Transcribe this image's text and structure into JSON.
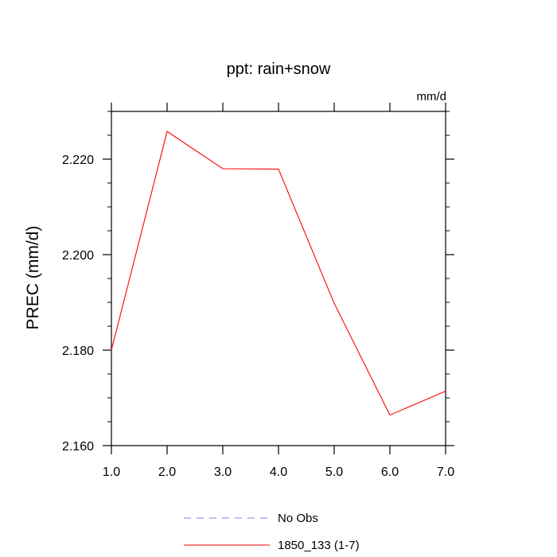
{
  "chart_data": {
    "type": "line",
    "title": "ppt: rain+snow",
    "units_label": "mm/d",
    "ylabel": "PREC  (mm/d)",
    "xlabel": "",
    "xlim": [
      1.0,
      7.0
    ],
    "ylim": [
      2.16,
      2.23
    ],
    "x_ticks": [
      1.0,
      2.0,
      3.0,
      4.0,
      5.0,
      6.0,
      7.0
    ],
    "x_tick_labels": [
      "1.0",
      "2.0",
      "3.0",
      "4.0",
      "5.0",
      "6.0",
      "7.0"
    ],
    "y_ticks": [
      2.16,
      2.18,
      2.2,
      2.22
    ],
    "y_tick_labels": [
      "2.160",
      "2.180",
      "2.200",
      "2.220"
    ],
    "y_minor_step": 0.005,
    "grid": false,
    "legend_position": "bottom-center",
    "series": [
      {
        "name": "1850_133 (1-7)",
        "color": "#ff0000",
        "style": "solid",
        "x": [
          1.0,
          2.0,
          3.0,
          4.0,
          5.0,
          6.0,
          7.0
        ],
        "y": [
          2.18,
          2.2258,
          2.218,
          2.2179,
          2.1898,
          2.1664,
          2.1714
        ]
      }
    ],
    "legend": [
      {
        "label": "No Obs",
        "color": "#7f7fff",
        "style": "dashed"
      },
      {
        "label": "1850_133 (1-7)",
        "color": "#ff0000",
        "style": "solid"
      }
    ]
  }
}
